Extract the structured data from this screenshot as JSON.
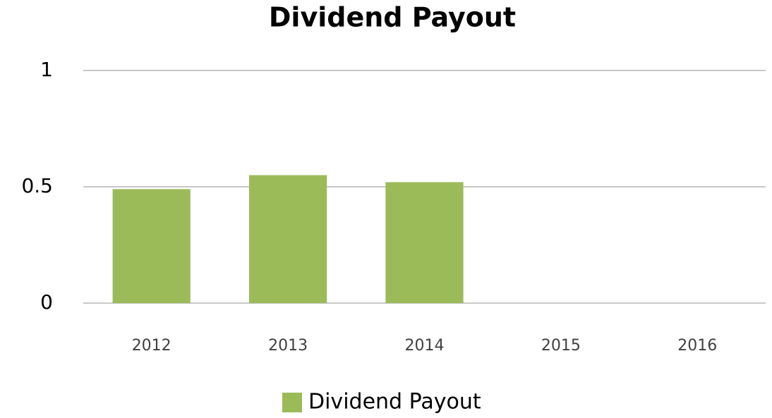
{
  "chart_data": {
    "type": "bar",
    "title": "Dividend Payout",
    "categories": [
      "2012",
      "2013",
      "2014",
      "2015",
      "2016"
    ],
    "series": [
      {
        "name": "Dividend Payout",
        "color": "#9bbb59",
        "values": [
          0.49,
          0.55,
          0.52,
          null,
          null
        ]
      }
    ],
    "ylim": [
      0,
      1
    ],
    "yticks": [
      0,
      0.5,
      1
    ],
    "grid": true,
    "legend": "bottom"
  }
}
